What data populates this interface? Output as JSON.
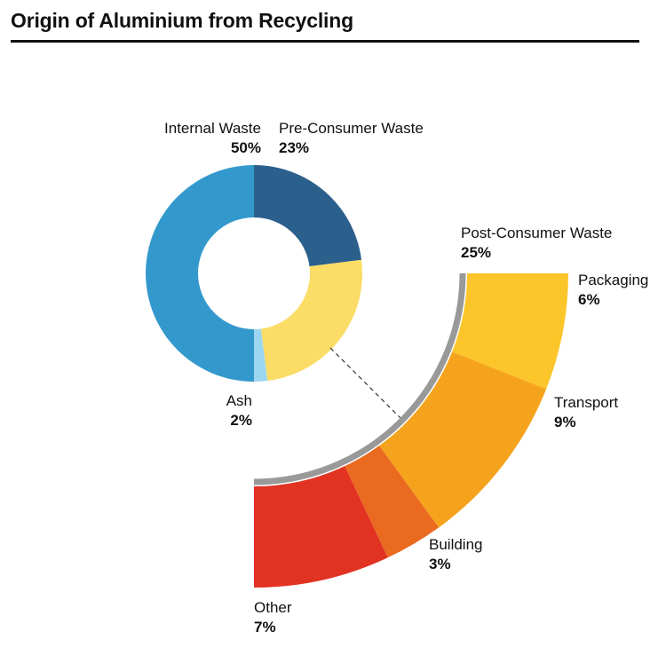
{
  "title": "Origin of Aluminium from Recycling",
  "colors": {
    "internal_waste": "#3399cc",
    "pre_consumer_waste": "#2b5f8c",
    "post_consumer_waste": "#fbdc66",
    "ash": "#9dd6f0",
    "packaging": "#fcc62a",
    "transport": "#f5a31d",
    "building": "#ea6a20",
    "other": "#e23222",
    "bracket": "#999999"
  },
  "chart_data": [
    {
      "type": "pie",
      "style": "donut",
      "slices": [
        {
          "label": "Internal Waste",
          "value_label": "50%",
          "value": 50
        },
        {
          "label": "Pre-Consumer Waste",
          "value_label": "23%",
          "value": 23
        },
        {
          "label": "Post-Consumer Waste",
          "value_label": "25%",
          "value": 25
        },
        {
          "label": "Ash",
          "value_label": "2%",
          "value": 2
        }
      ]
    },
    {
      "type": "pie",
      "style": "breakdown-arc",
      "parent": "Post-Consumer Waste",
      "slices": [
        {
          "label": "Packaging",
          "value_label": "6%",
          "value": 6
        },
        {
          "label": "Transport",
          "value_label": "9%",
          "value": 9
        },
        {
          "label": "Building",
          "value_label": "3%",
          "value": 3
        },
        {
          "label": "Other",
          "value_label": "7%",
          "value": 7
        }
      ]
    }
  ]
}
